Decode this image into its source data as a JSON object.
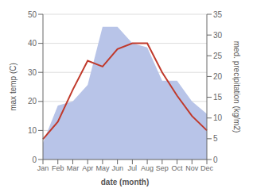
{
  "chart_data": {
    "type": "line",
    "categories": [
      "Jan",
      "Feb",
      "Mar",
      "Apr",
      "May",
      "Jun",
      "Jul",
      "Aug",
      "Sep",
      "Oct",
      "Nov",
      "Dec"
    ],
    "xlabel": "date (month)",
    "ylabel": "max temp (C)",
    "y2label": "med. precipitation (kg/m2)",
    "ylim": [
      0,
      50
    ],
    "yticks": [
      0,
      10,
      20,
      30,
      40,
      50
    ],
    "y2lim": [
      0,
      35
    ],
    "y2ticks": [
      0,
      5,
      10,
      15,
      20,
      25,
      30,
      35
    ],
    "grid": true,
    "series": [
      {
        "type": "area",
        "axis": "y2",
        "color": "#b8c4e8",
        "values": [
          4,
          13,
          14,
          18,
          32,
          32,
          28,
          27,
          19,
          19,
          14,
          11
        ]
      },
      {
        "type": "line",
        "color": "#c0392b",
        "values": [
          7,
          13,
          24,
          34,
          32,
          38,
          40,
          40,
          30,
          22,
          15,
          10
        ]
      }
    ]
  }
}
